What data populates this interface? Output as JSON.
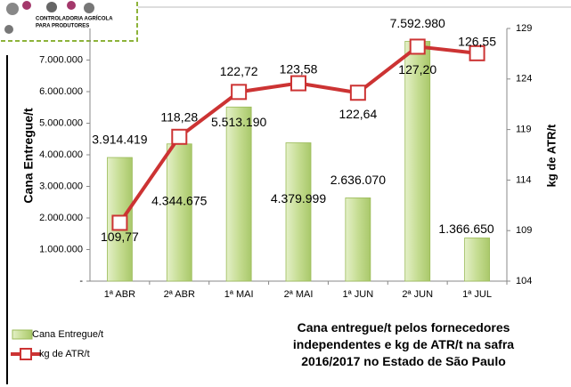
{
  "logo": {
    "line1": "CONTROLADORIA AGRÍCOLA",
    "line2": "PARA PRODUTORES"
  },
  "chart_data": {
    "type": "bar",
    "title": "Cana entregue/t  pelos fornecedores independentes e kg de ATR/t na safra 2016/2017 no Estado de São Paulo",
    "y_label": "Cana Entregue/t",
    "y2_label": "kg de ATR/t",
    "categories": [
      "1ª ABR",
      "2ª ABR",
      "1ª MAI",
      "2ª MAI",
      "1ª JUN",
      "2ª JUN",
      "1ª JUL"
    ],
    "series": [
      {
        "name": "Cana Entregue/t",
        "type": "bar",
        "color": "#c6dd93",
        "axis": "y",
        "values": [
          3914419,
          4344675,
          5513190,
          4379999,
          2636070,
          7592980,
          1366650
        ],
        "value_labels": [
          "3.914.419",
          "4.344.675",
          "5.513.190",
          "4.379.999",
          "2.636.070",
          "7.592.980",
          "1.366.650"
        ]
      },
      {
        "name": "kg de ATR/t",
        "type": "line",
        "color": "#cc3333",
        "axis": "y2",
        "values": [
          109.77,
          118.28,
          122.72,
          123.58,
          122.64,
          127.2,
          126.55
        ],
        "value_labels": [
          "109,77",
          "118,28",
          "122,72",
          "123,58",
          "122,64",
          "127,20",
          "126,55"
        ]
      }
    ],
    "ylim": [
      0,
      8000000
    ],
    "yticks": [
      {
        "value": 0,
        "label": "-"
      },
      {
        "value": 1000000,
        "label": "1.000.000"
      },
      {
        "value": 2000000,
        "label": "2.000.000"
      },
      {
        "value": 3000000,
        "label": "3.000.000"
      },
      {
        "value": 4000000,
        "label": "4.000.000"
      },
      {
        "value": 5000000,
        "label": "5.000.000"
      },
      {
        "value": 6000000,
        "label": "6.000.000"
      },
      {
        "value": 7000000,
        "label": "7.000.000"
      }
    ],
    "y2lim": [
      104,
      129
    ],
    "y2ticks": [
      104,
      109,
      114,
      119,
      124,
      129
    ],
    "legend": "bottom-left"
  }
}
